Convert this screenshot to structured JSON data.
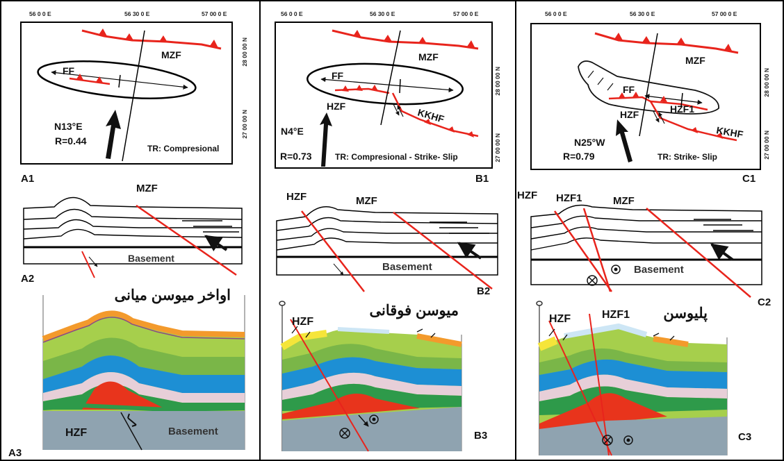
{
  "colors": {
    "fault_red": "#e8241c",
    "basement_gray": "#8fa3b0",
    "layer_yellow": "#f5e53a",
    "layer_orange": "#f39a2c",
    "layer_lightgreen": "#a6cf4c",
    "layer_green": "#7ab648",
    "layer_blue": "#1d8fd4",
    "layer_pink": "#e7cfd8",
    "layer_darkgreen": "#2e9a4a",
    "core_red": "#e8341c"
  },
  "axis": {
    "lon": [
      "56 0 0 E",
      "56 30 0 E",
      "57 00 0 E"
    ],
    "lat": [
      "28 00 00 N",
      "27 00 00 N"
    ]
  },
  "panels": {
    "A": {
      "map_id": "A1",
      "section_id": "A2",
      "model_id": "A3",
      "direction": "N13°E",
      "ratio": "R=0.44",
      "regime": "TR: Compresional",
      "fault_mzf": "MZF",
      "fault_ff": "FF",
      "section_fault": "MZF",
      "basement": "Basement",
      "model_title": "اواخر میوسن میانی",
      "model_fault": "HZF",
      "model_basement": "Basement"
    },
    "B": {
      "map_id": "B1",
      "section_id": "B2",
      "model_id": "B3",
      "direction": "N4°E",
      "ratio": "R=0.73",
      "regime": "TR: Compresional - Strike- Slip",
      "fault_mzf": "MZF",
      "fault_ff": "FF",
      "fault_hzf": "HZF",
      "fault_kkhf": "KKHF",
      "section_fault_1": "HZF",
      "section_fault_2": "MZF",
      "basement": "Basement",
      "model_title": "میوسن فوقانی",
      "model_fault": "HZF"
    },
    "C": {
      "map_id": "C1",
      "section_id": "C2",
      "model_id": "C3",
      "direction": "N25°W",
      "ratio": "R=0.79",
      "regime": "TR:  Strike- Slip",
      "fault_mzf": "MZF",
      "fault_ff": "FF",
      "fault_hzf": "HZF",
      "fault_hzf1": "HZF1",
      "fault_kkhf": "KKHF",
      "section_fault_1": "HZF",
      "section_fault_2": "HZF1",
      "section_fault_3": "MZF",
      "basement": "Basement",
      "model_title": "پلیوسن",
      "model_fault_1": "HZF",
      "model_fault_2": "HZF1"
    }
  }
}
